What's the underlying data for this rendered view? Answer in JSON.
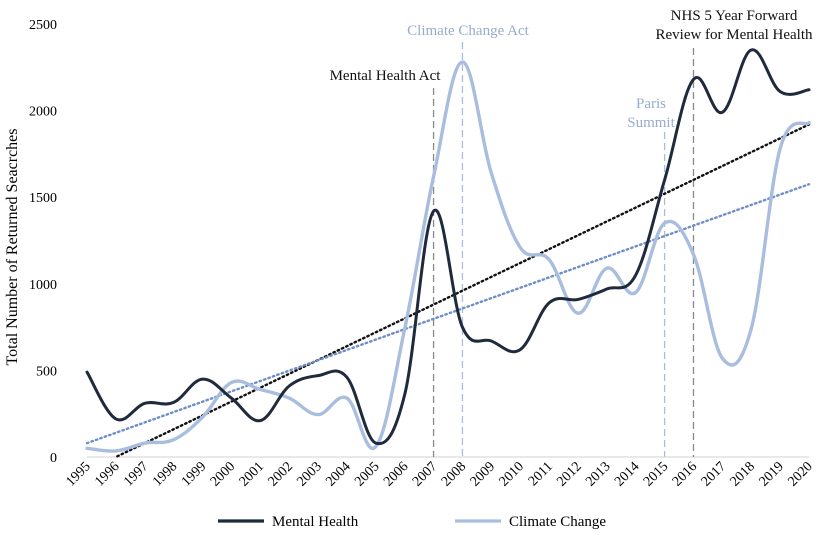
{
  "chart_data": {
    "type": "line",
    "title": "",
    "xlabel": "",
    "ylabel": "Total Number of Returned Seacrches",
    "ylim": [
      0,
      2500
    ],
    "yticks": [
      "0",
      "500",
      "1000",
      "1500",
      "2000",
      "2500"
    ],
    "x": [
      "1995",
      "1996",
      "1997",
      "1998",
      "1999",
      "2000",
      "2001",
      "2002",
      "2003",
      "2004",
      "2005",
      "2006",
      "2007",
      "2008",
      "2009",
      "2010",
      "2011",
      "2012",
      "2013",
      "2014",
      "2015",
      "2016",
      "2017",
      "2018",
      "2019",
      "2020"
    ],
    "series": [
      {
        "name": "Mental Health",
        "color": "#1f2a3c",
        "values": [
          490,
          220,
          310,
          315,
          450,
          340,
          210,
          410,
          470,
          460,
          80,
          360,
          1420,
          750,
          670,
          620,
          890,
          910,
          970,
          1050,
          1600,
          2180,
          1990,
          2350,
          2110,
          2120
        ],
        "trendline": [
          0,
          1920
        ]
      },
      {
        "name": "Climate Change",
        "color": "#a9bddf",
        "values": [
          50,
          35,
          80,
          100,
          230,
          430,
          390,
          340,
          245,
          340,
          60,
          740,
          1620,
          2280,
          1640,
          1210,
          1140,
          830,
          1090,
          950,
          1350,
          1170,
          570,
          740,
          1780,
          1930
        ],
        "trendline": [
          80,
          1575
        ]
      }
    ],
    "annotations": [
      {
        "text": "Mental Health Act",
        "year": "2007",
        "color": "#1f2a3c"
      },
      {
        "text": "Climate Change Act",
        "year": "2008",
        "color": "#97acd0"
      },
      {
        "text": [
          "Paris",
          "Summit"
        ],
        "year": "2015",
        "color": "#97acd0"
      },
      {
        "text": [
          "NHS 5 Year Forward",
          "Review for Mental Health"
        ],
        "year": "2016",
        "color": "#1f2a3c"
      }
    ],
    "legend": {
      "position": "bottom",
      "items": [
        "Mental Health",
        "Climate Change"
      ]
    }
  }
}
